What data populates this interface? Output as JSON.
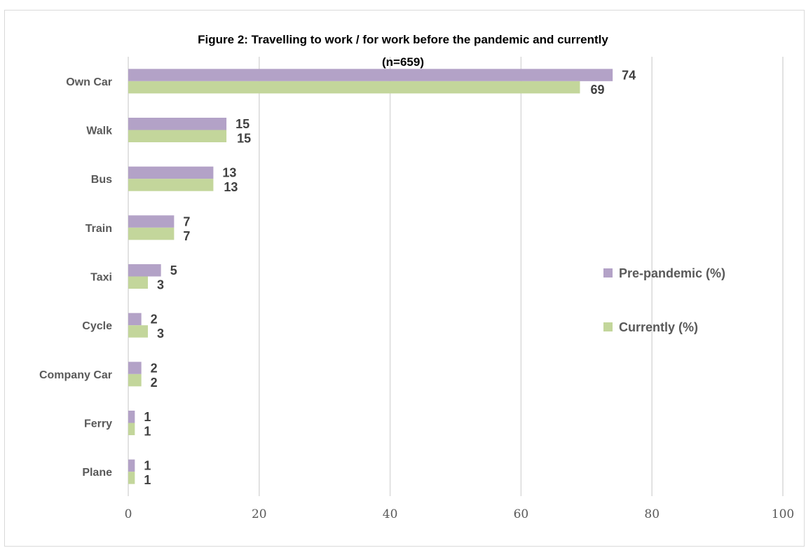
{
  "chart_data": {
    "type": "bar",
    "orientation": "horizontal",
    "title": "Figure 2:  Travelling to work / for work before the pandemic and currently",
    "subtitle": "(n=659)",
    "categories": [
      "Own Car",
      "Walk",
      "Bus",
      "Train",
      "Taxi",
      "Cycle",
      "Company Car",
      "Ferry",
      "Plane"
    ],
    "series": [
      {
        "name": "Pre-pandemic (%)",
        "color": "#b3a2c7",
        "values": [
          74,
          15,
          13,
          7,
          5,
          2,
          2,
          1,
          1
        ]
      },
      {
        "name": "Currently (%)",
        "color": "#c3d69b",
        "values": [
          69,
          15,
          13,
          7,
          3,
          3,
          2,
          1,
          1
        ]
      }
    ],
    "xlim": [
      0,
      100
    ],
    "xticks": [
      0,
      20,
      40,
      60,
      80,
      100
    ],
    "grid": true,
    "legend_position": "right"
  }
}
